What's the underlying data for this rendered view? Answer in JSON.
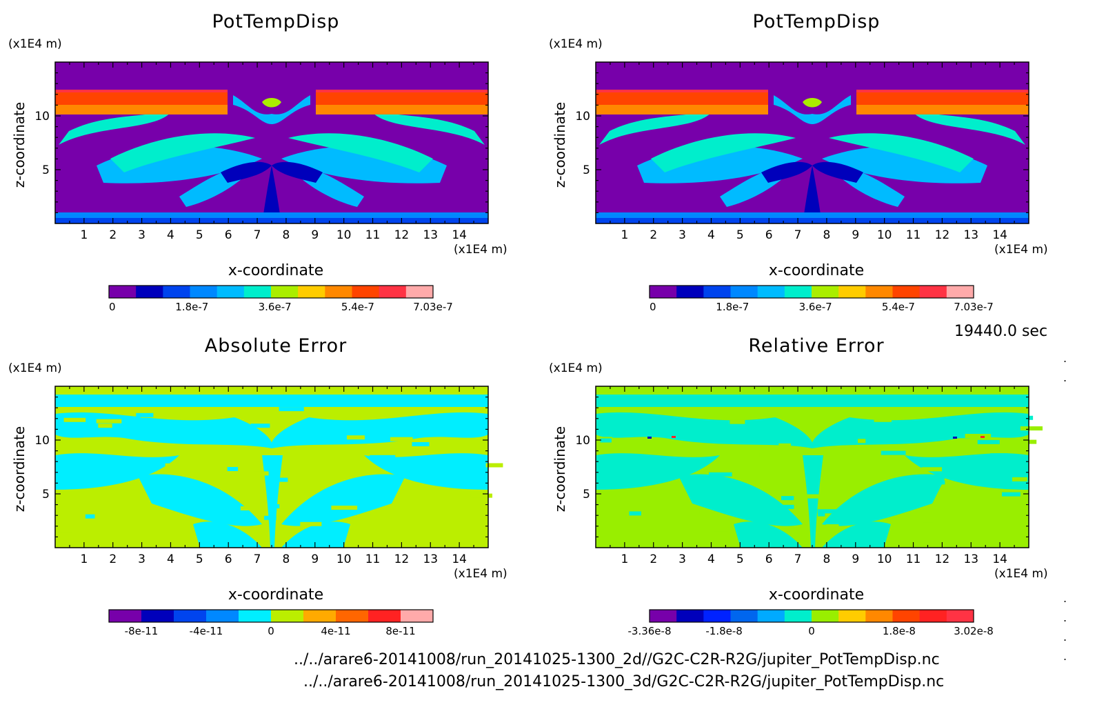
{
  "time_label": "19440.0 sec",
  "file_paths": [
    "../../arare6-20141008/run_20141025-1300_2d//G2C-C2R-R2G/jupiter_PotTempDisp.nc",
    "../../arare6-20141008/run_20141025-1300_3d/G2C-C2R-R2G/jupiter_PotTempDisp.nc"
  ],
  "chart_data": [
    {
      "type": "heatmap",
      "title": "PotTempDisp",
      "xlabel": "x-coordinate",
      "ylabel": "z-coordinate",
      "x_unit": "(x1E4 m)",
      "y_unit": "(x1E4 m)",
      "xlim": [
        0,
        15
      ],
      "ylim": [
        0,
        15
      ],
      "x_ticks": [
        "1",
        "2",
        "3",
        "4",
        "5",
        "6",
        "7",
        "8",
        "9",
        "10",
        "11",
        "12",
        "13",
        "14"
      ],
      "y_ticks": [
        "5",
        "10"
      ],
      "colorbar": {
        "colors": [
          "#7700aa",
          "#0000bb",
          "#0044ee",
          "#0088ff",
          "#00bbff",
          "#00eecc",
          "#aaee00",
          "#ffcc00",
          "#ff8800",
          "#ff4400",
          "#ff3344",
          "#ffaaaa"
        ],
        "tick_labels": [
          "0",
          "1.8e-7",
          "3.6e-7",
          "5.4e-7",
          "7.03e-7"
        ]
      }
    },
    {
      "type": "heatmap",
      "title": "PotTempDisp",
      "xlabel": "x-coordinate",
      "ylabel": "z-coordinate",
      "x_unit": "(x1E4 m)",
      "y_unit": "(x1E4 m)",
      "xlim": [
        0,
        15
      ],
      "ylim": [
        0,
        15
      ],
      "x_ticks": [
        "1",
        "2",
        "3",
        "4",
        "5",
        "6",
        "7",
        "8",
        "9",
        "10",
        "11",
        "12",
        "13",
        "14"
      ],
      "y_ticks": [
        "5",
        "10"
      ],
      "colorbar": {
        "colors": [
          "#7700aa",
          "#0000bb",
          "#0044ee",
          "#0088ff",
          "#00bbff",
          "#00eecc",
          "#aaee00",
          "#ffcc00",
          "#ff8800",
          "#ff4400",
          "#ff3344",
          "#ffaaaa"
        ],
        "tick_labels": [
          "0",
          "1.8e-7",
          "3.6e-7",
          "5.4e-7",
          "7.03e-7"
        ]
      }
    },
    {
      "type": "heatmap",
      "title": "Absolute Error",
      "xlabel": "x-coordinate",
      "ylabel": "z-coordinate",
      "x_unit": "(x1E4 m)",
      "y_unit": "(x1E4 m)",
      "xlim": [
        0,
        15
      ],
      "ylim": [
        0,
        15
      ],
      "x_ticks": [
        "1",
        "2",
        "3",
        "4",
        "5",
        "6",
        "7",
        "8",
        "9",
        "10",
        "11",
        "12",
        "13",
        "14"
      ],
      "y_ticks": [
        "5",
        "10"
      ],
      "colorbar": {
        "colors": [
          "#7700aa",
          "#0000bb",
          "#0044ee",
          "#0088ff",
          "#00eeff",
          "#bbee00",
          "#ffaa00",
          "#ff6600",
          "#ff2222",
          "#ffaaaa"
        ],
        "tick_labels": [
          "-8e-11",
          "-4e-11",
          "0",
          "4e-11",
          "8e-11"
        ]
      }
    },
    {
      "type": "heatmap",
      "title": "Relative Error",
      "xlabel": "x-coordinate",
      "ylabel": "z-coordinate",
      "x_unit": "(x1E4 m)",
      "y_unit": "(x1E4 m)",
      "xlim": [
        0,
        15
      ],
      "ylim": [
        0,
        15
      ],
      "x_ticks": [
        "1",
        "2",
        "3",
        "4",
        "5",
        "6",
        "7",
        "8",
        "9",
        "10",
        "11",
        "12",
        "13",
        "14"
      ],
      "y_ticks": [
        "5",
        "10"
      ],
      "colorbar": {
        "colors": [
          "#7700aa",
          "#0000bb",
          "#0022ff",
          "#0066ee",
          "#00aaff",
          "#00eecc",
          "#99ee00",
          "#ffcc00",
          "#ff8800",
          "#ff4400",
          "#ff2222",
          "#ff3344"
        ],
        "tick_labels": [
          "-3.36e-8",
          "-1.8e-8",
          "0",
          "1.8e-8",
          "3.02e-8"
        ]
      }
    }
  ]
}
